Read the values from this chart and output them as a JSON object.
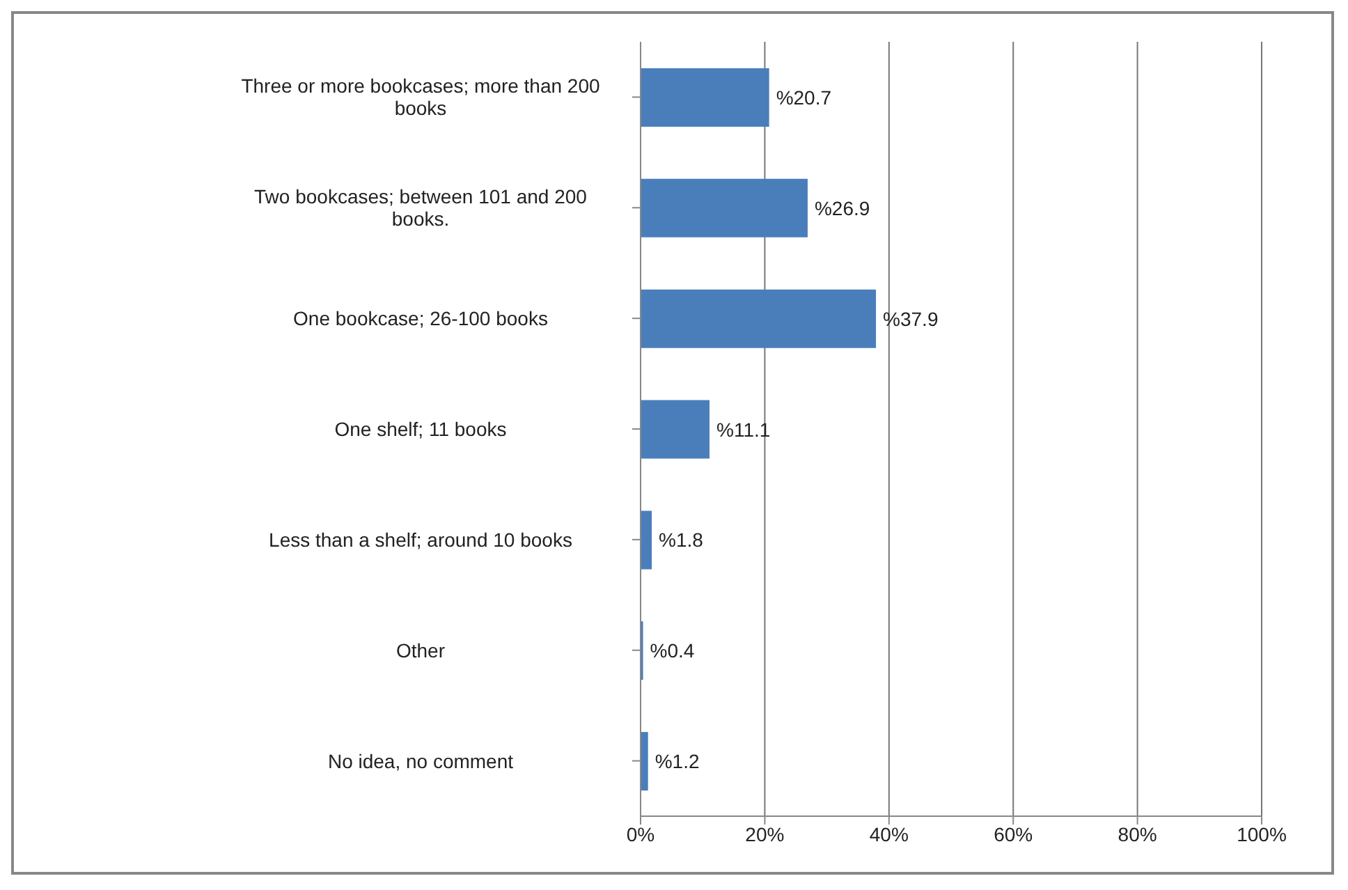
{
  "chart_data": {
    "type": "bar",
    "orientation": "horizontal",
    "categories": [
      "Three or more bookcases; more than 200 books",
      "Two bookcases; between 101 and 200 books.",
      "One bookcase; 26-100 books",
      "One shelf; 11 books",
      "Less than a shelf; around 10 books",
      "Other",
      "No idea, no comment"
    ],
    "values": [
      20.7,
      26.9,
      37.9,
      11.1,
      1.8,
      0.4,
      1.2
    ],
    "value_labels": [
      "%20.7",
      "%26.9",
      "%37.9",
      "%11.1",
      "%1.8",
      "%0.4",
      "%1.2"
    ],
    "color": "#4a7ebb",
    "xlim": [
      0,
      100
    ],
    "xticks": [
      {
        "value": 0,
        "label": "0%"
      },
      {
        "value": 20,
        "label": "20%"
      },
      {
        "value": 40,
        "label": "40%"
      },
      {
        "value": 60,
        "label": "60%"
      },
      {
        "value": 80,
        "label": "80%"
      },
      {
        "value": 100,
        "label": "100%"
      }
    ],
    "grid": "x"
  }
}
